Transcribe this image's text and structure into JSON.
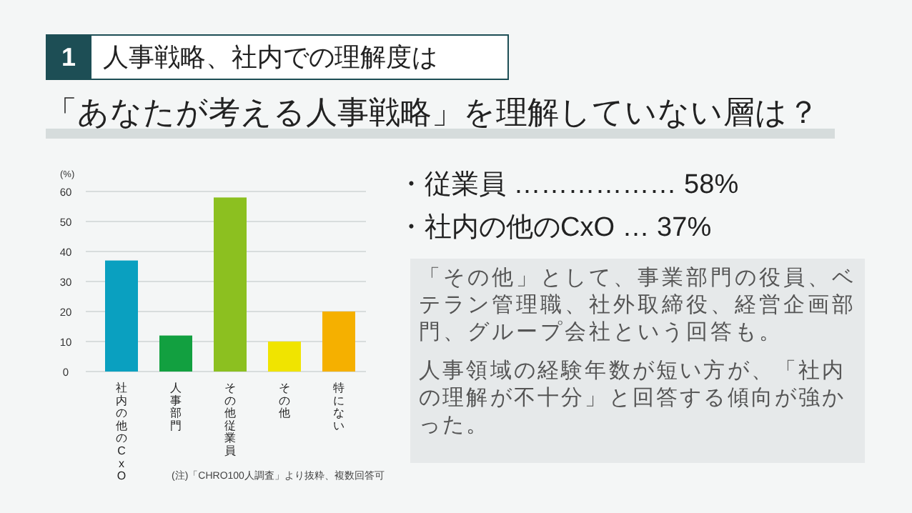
{
  "chart_data": {
    "type": "bar",
    "title": "人事戦略、社内での理解度は",
    "subtitle": "「あなたが考える人事戦略」を理解していない層は？",
    "ylabel": "(%)",
    "categories": [
      "社内の他のCxO",
      "人事部門",
      "その他従業員",
      "その他",
      "特にない"
    ],
    "values": [
      37,
      12,
      58,
      10,
      20
    ],
    "colors": [
      "#0aa0c0",
      "#12a040",
      "#8cc020",
      "#f0e400",
      "#f5b000"
    ],
    "ylim": [
      0,
      60
    ],
    "yticks": [
      0,
      10,
      20,
      30,
      40,
      50,
      60
    ],
    "grid": "y",
    "annotations": [
      "1",
      "・従業員 ……………… 58%",
      "・社内の他のCxO … 37%",
      "「その他」として、事業部門の役員、ベテラン管理職、社外取締役、経営企画部門、グループ会社という回答も。",
      "人事領域の経験年数が短い方が、「社内の理解が不十分」と回答する傾向が強かった。",
      "(注)「CHRO100人調査」より抜粋、複数回答可"
    ]
  }
}
